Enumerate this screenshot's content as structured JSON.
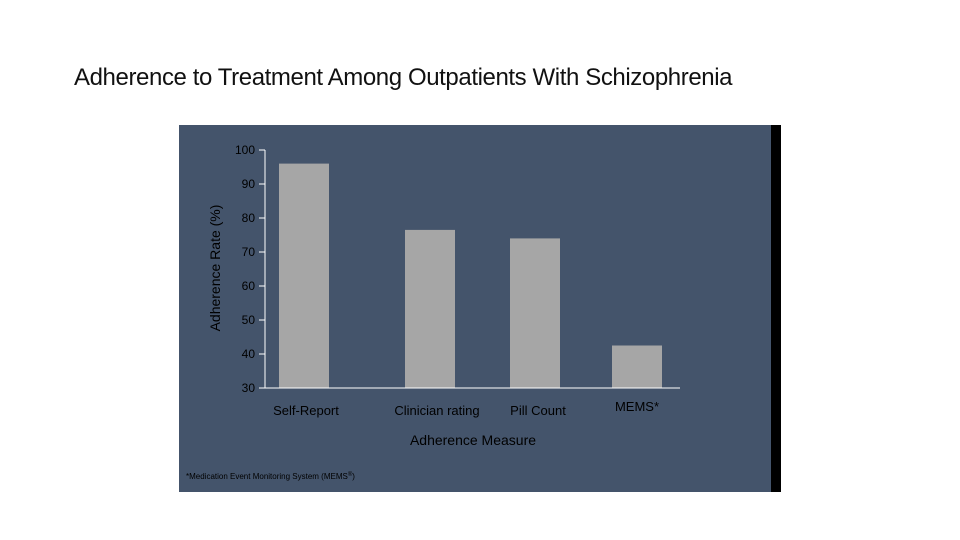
{
  "slide": {
    "title": "Adherence to Treatment Among Outpatients With Schizophrenia"
  },
  "colors": {
    "panel": "#44546b",
    "bar": "#a6a6a6",
    "axis": "#ffffff",
    "text": "#000000"
  },
  "chart_data": {
    "type": "bar",
    "categories": [
      "Self-Report",
      "Clinician rating",
      "Pill Count",
      "MEMS*"
    ],
    "values": [
      96,
      76.5,
      74,
      42.5
    ],
    "xlabel": "Adherence Measure",
    "ylabel": "Adherence Rate (%)",
    "ylim": [
      30,
      100
    ],
    "yticks": [
      "100",
      "90",
      "80",
      "70",
      "60",
      "50",
      "40",
      "30"
    ],
    "grid": false,
    "footnote": "*Medication Event Monitoring System (MEMS",
    "footnote_sup": "®",
    "footnote_end": ")"
  }
}
